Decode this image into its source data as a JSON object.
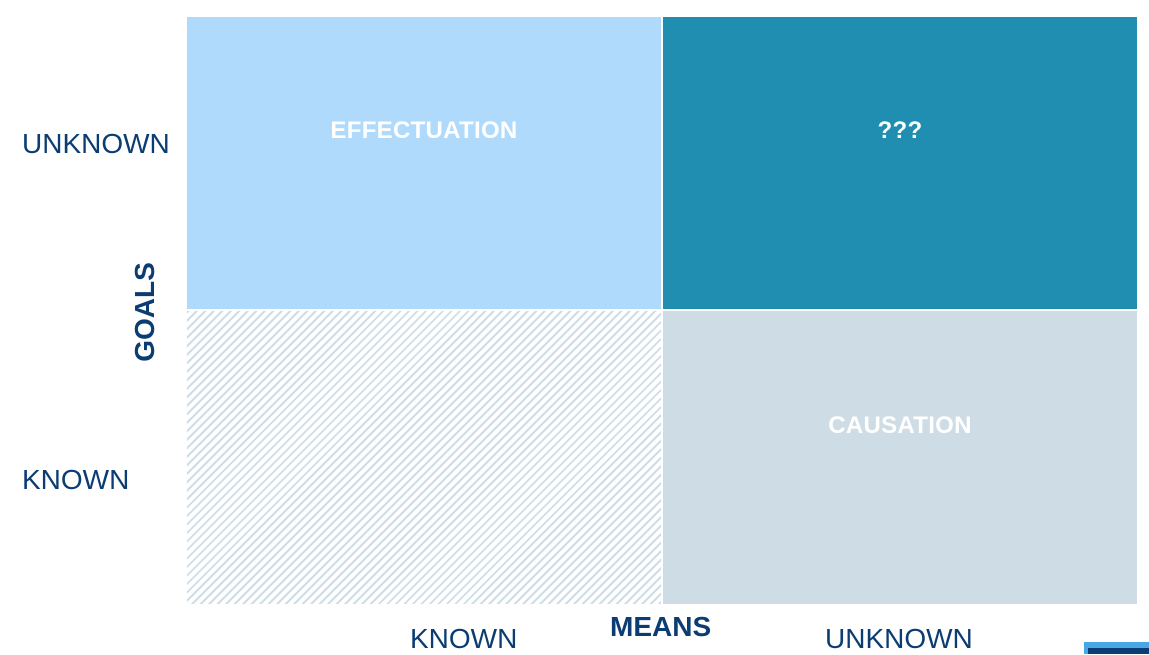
{
  "diagram": {
    "quadrants": {
      "top_left": {
        "label": "EFFECTUATION",
        "color": "#b0dafc"
      },
      "top_right": {
        "label": "???",
        "color": "#1f8eb1"
      },
      "bottom_left": {
        "label": "",
        "color": "#cfdde6"
      },
      "bottom_right": {
        "label": "CAUSATION",
        "color": "#cedde5"
      }
    },
    "y_axis": {
      "title": "GOALS",
      "ticks": [
        "UNKNOWN",
        "KNOWN"
      ]
    },
    "x_axis": {
      "title": "MEANS",
      "ticks": [
        "KNOWN",
        "UNKNOWN"
      ]
    },
    "text_color": "#0b3d73"
  }
}
